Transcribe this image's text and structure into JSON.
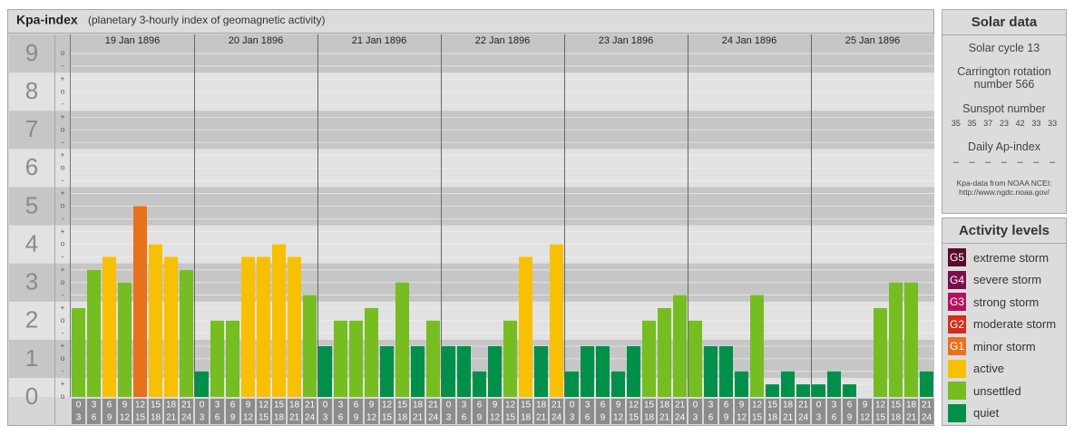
{
  "chart_data": {
    "type": "bar",
    "title": "Kpa-index",
    "subtitle": "(planetary 3-hourly index of geomagnetic activity)",
    "days": [
      "19 Jan 1896",
      "20 Jan 1896",
      "21 Jan 1896",
      "22 Jan 1896",
      "23 Jan 1896",
      "24 Jan 1896",
      "25 Jan 1896"
    ],
    "categories": [
      [
        "0",
        "3"
      ],
      [
        "3",
        "6"
      ],
      [
        "6",
        "9"
      ],
      [
        "9",
        "12"
      ],
      [
        "12",
        "15"
      ],
      [
        "15",
        "18"
      ],
      [
        "18",
        "21"
      ],
      [
        "21",
        "24"
      ],
      [
        "0",
        "3"
      ],
      [
        "3",
        "6"
      ],
      [
        "6",
        "9"
      ],
      [
        "9",
        "12"
      ],
      [
        "12",
        "15"
      ],
      [
        "15",
        "18"
      ],
      [
        "18",
        "21"
      ],
      [
        "21",
        "24"
      ],
      [
        "0",
        "3"
      ],
      [
        "3",
        "6"
      ],
      [
        "6",
        "9"
      ],
      [
        "9",
        "12"
      ],
      [
        "12",
        "15"
      ],
      [
        "15",
        "18"
      ],
      [
        "18",
        "21"
      ],
      [
        "21",
        "24"
      ],
      [
        "0",
        "3"
      ],
      [
        "3",
        "6"
      ],
      [
        "6",
        "9"
      ],
      [
        "9",
        "12"
      ],
      [
        "12",
        "15"
      ],
      [
        "15",
        "18"
      ],
      [
        "18",
        "21"
      ],
      [
        "21",
        "24"
      ],
      [
        "0",
        "3"
      ],
      [
        "3",
        "6"
      ],
      [
        "6",
        "9"
      ],
      [
        "9",
        "12"
      ],
      [
        "12",
        "15"
      ],
      [
        "15",
        "18"
      ],
      [
        "18",
        "21"
      ],
      [
        "21",
        "24"
      ],
      [
        "0",
        "3"
      ],
      [
        "3",
        "6"
      ],
      [
        "6",
        "9"
      ],
      [
        "9",
        "12"
      ],
      [
        "12",
        "15"
      ],
      [
        "15",
        "18"
      ],
      [
        "18",
        "21"
      ],
      [
        "21",
        "24"
      ],
      [
        "0",
        "3"
      ],
      [
        "3",
        "6"
      ],
      [
        "6",
        "9"
      ],
      [
        "9",
        "12"
      ],
      [
        "12",
        "15"
      ],
      [
        "15",
        "18"
      ],
      [
        "18",
        "21"
      ],
      [
        "21",
        "24"
      ]
    ],
    "values": [
      2.33,
      3.33,
      3.67,
      3,
      5,
      4,
      3.67,
      3.33,
      0.67,
      2,
      2,
      3.67,
      3.67,
      4,
      3.67,
      2.67,
      1.33,
      2,
      2,
      2.33,
      1.33,
      3,
      1.33,
      2,
      1.33,
      1.33,
      0.67,
      1.33,
      2,
      3.67,
      1.33,
      4,
      0.67,
      1.33,
      1.33,
      0.67,
      1.33,
      2,
      2.33,
      2.67,
      2,
      1.33,
      1.33,
      0.67,
      2.67,
      0.33,
      0.67,
      0.33,
      0.33,
      0.67,
      0.33,
      0,
      2.33,
      3,
      3,
      0.67
    ],
    "colors": [
      "#76bd22",
      "#76bd22",
      "#f7c000",
      "#76bd22",
      "#e8711c",
      "#f7c000",
      "#f7c000",
      "#76bd22",
      "#00904a",
      "#76bd22",
      "#76bd22",
      "#f7c000",
      "#f7c000",
      "#f7c000",
      "#f7c000",
      "#76bd22",
      "#00904a",
      "#76bd22",
      "#76bd22",
      "#76bd22",
      "#00904a",
      "#76bd22",
      "#00904a",
      "#76bd22",
      "#00904a",
      "#00904a",
      "#00904a",
      "#00904a",
      "#76bd22",
      "#f7c000",
      "#00904a",
      "#f7c000",
      "#00904a",
      "#00904a",
      "#00904a",
      "#00904a",
      "#00904a",
      "#76bd22",
      "#76bd22",
      "#76bd22",
      "#76bd22",
      "#00904a",
      "#00904a",
      "#00904a",
      "#76bd22",
      "#00904a",
      "#00904a",
      "#00904a",
      "#00904a",
      "#00904a",
      "#00904a",
      "#00904a",
      "#76bd22",
      "#76bd22",
      "#76bd22",
      "#00904a"
    ],
    "ylim": [
      0,
      9.5
    ],
    "yticks": [
      0,
      1,
      2,
      3,
      4,
      5,
      6,
      7,
      8,
      9
    ],
    "minor_yticks": [
      {
        "value": 0,
        "label": "o"
      },
      {
        "value": 0.33,
        "label": "+"
      },
      {
        "value": 0.67,
        "label": "-"
      },
      {
        "value": 1,
        "label": "o"
      },
      {
        "value": 1.33,
        "label": "+"
      },
      {
        "value": 1.67,
        "label": "-"
      },
      {
        "value": 2,
        "label": "o"
      },
      {
        "value": 2.33,
        "label": "+"
      },
      {
        "value": 2.67,
        "label": "-"
      },
      {
        "value": 3,
        "label": "o"
      },
      {
        "value": 3.33,
        "label": "+"
      },
      {
        "value": 3.67,
        "label": "-"
      },
      {
        "value": 4,
        "label": "o"
      },
      {
        "value": 4.33,
        "label": "+"
      },
      {
        "value": 4.67,
        "label": "-"
      },
      {
        "value": 5,
        "label": "o"
      },
      {
        "value": 5.33,
        "label": "+"
      },
      {
        "value": 5.67,
        "label": "-"
      },
      {
        "value": 6,
        "label": "o"
      },
      {
        "value": 6.33,
        "label": "+"
      },
      {
        "value": 6.67,
        "label": "-"
      },
      {
        "value": 7,
        "label": "o"
      },
      {
        "value": 7.33,
        "label": "+"
      },
      {
        "value": 7.67,
        "label": "-"
      },
      {
        "value": 8,
        "label": "o"
      },
      {
        "value": 8.33,
        "label": "+"
      },
      {
        "value": 8.67,
        "label": "-"
      },
      {
        "value": 9,
        "label": "o"
      }
    ],
    "grid": true
  },
  "solar_data": {
    "title": "Solar data",
    "cycle": "Solar cycle 13",
    "carrington": "Carrington rotation number 566",
    "sunspot_title": "Sunspot number",
    "sunspots": [
      35,
      35,
      37,
      23,
      42,
      33,
      33
    ],
    "ap_title": "Daily Ap-index",
    "ap": [
      "–",
      "–",
      "–",
      "–",
      "–",
      "–",
      "–"
    ],
    "source": "Kpa-data from NOAA NCEI:",
    "source_url": "http://www.ngdc.noaa.gov/"
  },
  "activity_levels": {
    "title": "Activity levels",
    "items": [
      {
        "badge": "G5",
        "label": "extreme storm",
        "color": "#5a0a2c"
      },
      {
        "badge": "G4",
        "label": "severe storm",
        "color": "#7d0c4a"
      },
      {
        "badge": "G3",
        "label": "strong storm",
        "color": "#b3125e"
      },
      {
        "badge": "G2",
        "label": "moderate storm",
        "color": "#d22e1c"
      },
      {
        "badge": "G1",
        "label": "minor storm",
        "color": "#e8711c"
      },
      {
        "label": "active",
        "color": "#f7c000"
      },
      {
        "label": "unsettled",
        "color": "#76bd22"
      },
      {
        "label": "quiet",
        "color": "#00904a"
      }
    ]
  }
}
